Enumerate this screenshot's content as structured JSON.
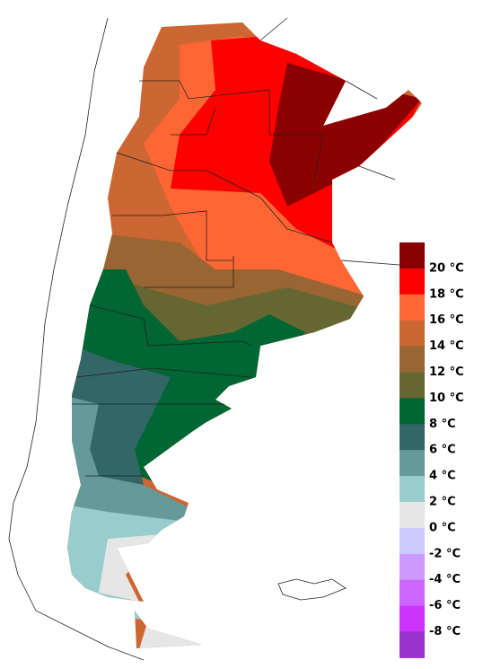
{
  "legend": {
    "labels": [
      "20 °C",
      "18 °C",
      "16 °C",
      "14 °C",
      "12 °C",
      "10 °C",
      "8 °C",
      "6 °C",
      "4 °C",
      "2 °C",
      "0 °C",
      "-2 °C",
      "-4 °C",
      "-6 °C",
      "-8 °C"
    ],
    "colors": [
      "#8b0000",
      "#ff0000",
      "#ff6633",
      "#cc6633",
      "#996633",
      "#666633",
      "#006633",
      "#336666",
      "#669999",
      "#99cccc",
      "#e6e6e6",
      "#ccccff",
      "#cc99ff",
      "#cc66ff",
      "#cc33ff",
      "#9933cc"
    ]
  }
}
